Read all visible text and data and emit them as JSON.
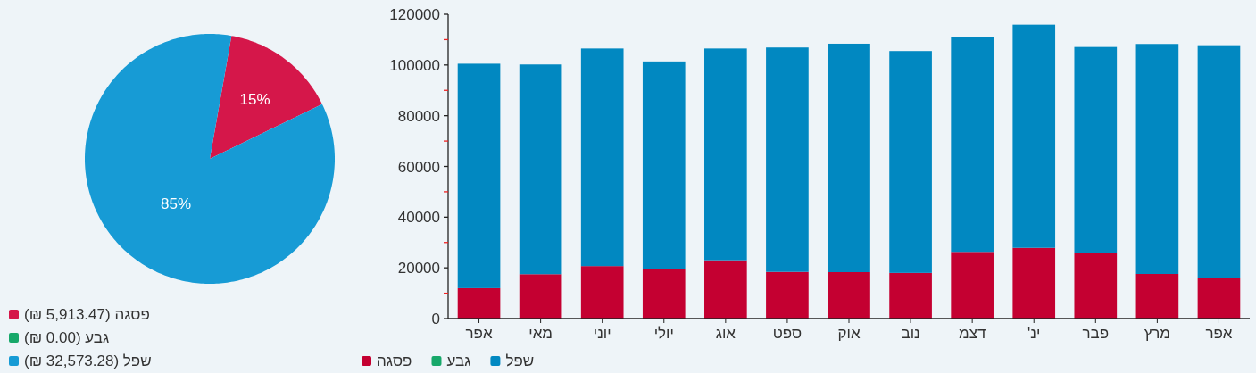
{
  "chart_data": [
    {
      "type": "pie",
      "categories": [
        "פסגה (5,913.47 ₪)",
        "גבע (0.00 ₪)",
        "שפל (32,573.28 ₪)"
      ],
      "values": [
        15,
        0,
        85
      ],
      "colors": [
        "#d5174a",
        "#17a86a",
        "#179bd5"
      ],
      "value_labels": [
        "15%",
        null,
        "85%"
      ],
      "legend": "bottom left"
    },
    {
      "type": "bar",
      "stacked": true,
      "categories": [
        "אפר",
        "מאי",
        "יוני",
        "יולי",
        "אוג",
        "ספט",
        "אוק",
        "נוב",
        "דצמ",
        "ינ'",
        "פבר",
        "מרץ",
        "אפר"
      ],
      "series": [
        {
          "name": "פסגה",
          "color": "#c40031",
          "values": [
            12000,
            17500,
            20700,
            19600,
            23000,
            18400,
            18300,
            18000,
            26300,
            27900,
            25800,
            17600,
            15900
          ]
        },
        {
          "name": "גבע",
          "color": "#17a86a",
          "values": [
            0,
            0,
            0,
            0,
            0,
            0,
            0,
            0,
            0,
            0,
            0,
            0,
            0
          ]
        },
        {
          "name": "שפל",
          "color": "#0188c1",
          "values": [
            88500,
            82700,
            85800,
            81800,
            83500,
            88500,
            90100,
            87500,
            84600,
            88000,
            81300,
            90700,
            91900
          ]
        }
      ],
      "ylim": [
        0,
        120000
      ],
      "yticks": [
        0,
        {
          "value": 10000,
          "label": null
        },
        20000,
        {
          "value": 30000,
          "label": null
        },
        40000,
        {
          "value": 50000,
          "label": null
        },
        60000,
        {
          "value": 70000,
          "label": null
        },
        80000,
        {
          "value": 90000,
          "label": null
        },
        100000,
        {
          "value": 110000,
          "label": null
        },
        120000
      ],
      "grid": false,
      "legend": "bottom left"
    }
  ]
}
